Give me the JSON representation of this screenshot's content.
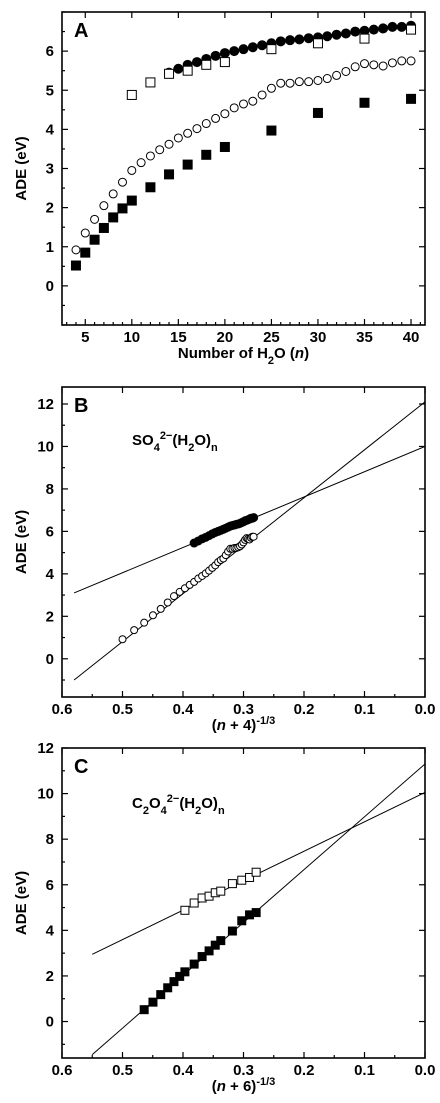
{
  "chart_data": [
    {
      "type": "scatter",
      "panel_label": "A",
      "xlabel": "Number of H2O (n)",
      "ylabel": "ADE (eV)",
      "xlim": [
        2.5,
        41.5
      ],
      "ylim": [
        -1.0,
        7.0
      ],
      "xticks": [
        5,
        10,
        15,
        20,
        25,
        30,
        35,
        40
      ],
      "yticks": [
        0,
        1,
        2,
        3,
        4,
        5,
        6
      ],
      "series": [
        {
          "marker": "filled-circle",
          "x": [
            14,
            15,
            16,
            17,
            18,
            19,
            20,
            21,
            22,
            23,
            24,
            25,
            26,
            27,
            28,
            29,
            30,
            31,
            32,
            33,
            34,
            35,
            36,
            37,
            38,
            39,
            40
          ],
          "y": [
            5.45,
            5.55,
            5.65,
            5.72,
            5.8,
            5.88,
            5.95,
            6.0,
            6.05,
            6.1,
            6.15,
            6.2,
            6.25,
            6.28,
            6.3,
            6.33,
            6.35,
            6.38,
            6.42,
            6.45,
            6.5,
            6.52,
            6.55,
            6.58,
            6.62,
            6.62,
            6.65
          ]
        },
        {
          "marker": "open-circle",
          "x": [
            4,
            5,
            6,
            7,
            8,
            9,
            10,
            11,
            12,
            13,
            14,
            15,
            16,
            17,
            18,
            19,
            20,
            21,
            22,
            23,
            24,
            25,
            26,
            27,
            28,
            29,
            30,
            31,
            32,
            33,
            34,
            35,
            36,
            37,
            38,
            39,
            40
          ],
          "y": [
            0.92,
            1.35,
            1.7,
            2.05,
            2.35,
            2.65,
            2.95,
            3.15,
            3.32,
            3.48,
            3.62,
            3.78,
            3.9,
            4.02,
            4.15,
            4.28,
            4.4,
            4.55,
            4.65,
            4.72,
            4.88,
            5.05,
            5.18,
            5.18,
            5.22,
            5.22,
            5.25,
            5.3,
            5.38,
            5.48,
            5.6,
            5.68,
            5.65,
            5.62,
            5.7,
            5.75,
            5.75
          ]
        },
        {
          "marker": "open-square",
          "x": [
            10,
            12,
            14,
            16,
            18,
            20,
            25,
            30,
            35,
            40
          ],
          "y": [
            4.88,
            5.2,
            5.42,
            5.5,
            5.65,
            5.72,
            6.05,
            6.2,
            6.32,
            6.55
          ]
        },
        {
          "marker": "filled-square",
          "x": [
            4,
            5,
            6,
            7,
            8,
            9,
            10,
            12,
            14,
            16,
            18,
            20,
            25,
            30,
            35,
            40
          ],
          "y": [
            0.52,
            0.85,
            1.18,
            1.48,
            1.75,
            1.98,
            2.18,
            2.52,
            2.85,
            3.1,
            3.35,
            3.55,
            3.97,
            4.42,
            4.68,
            4.78
          ]
        }
      ]
    },
    {
      "type": "scatter",
      "panel_label": "B",
      "annotation": "SO4 2-(H2O)n",
      "xlabel": "(n + 4)-1/3",
      "ylabel": "ADE (eV)",
      "xlim": [
        0.6,
        0.0
      ],
      "ylim": [
        -1.8,
        12.8
      ],
      "xticks": [
        0.6,
        0.5,
        0.4,
        0.3,
        0.2,
        0.1,
        0.0
      ],
      "yticks": [
        0,
        2,
        4,
        6,
        8,
        10,
        12
      ],
      "fit_lines": [
        {
          "x": [
            0.58,
            0.0
          ],
          "y": [
            3.1,
            10.0
          ]
        },
        {
          "x": [
            0.58,
            0.0
          ],
          "y": [
            -1.0,
            12.1
          ]
        }
      ]
    },
    {
      "type": "scatter",
      "panel_label": "C",
      "annotation": "C2O4 2-(H2O)n",
      "xlabel": "(n + 6)-1/3",
      "ylabel": "ADE (eV)",
      "xlim": [
        0.6,
        0.0
      ],
      "ylim": [
        -1.6,
        12.0
      ],
      "xticks": [
        0.6,
        0.5,
        0.4,
        0.3,
        0.2,
        0.1,
        0.0
      ],
      "yticks": [
        0,
        2,
        4,
        6,
        8,
        10,
        12
      ],
      "fit_lines": [
        {
          "x": [
            0.55,
            0.0
          ],
          "y": [
            2.95,
            10.05
          ]
        },
        {
          "x": [
            0.55,
            0.0
          ],
          "y": [
            -1.45,
            11.3
          ]
        }
      ]
    }
  ]
}
